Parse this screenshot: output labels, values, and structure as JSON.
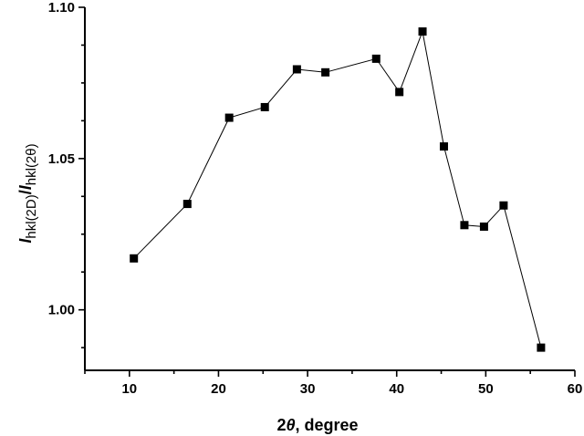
{
  "chart_data": {
    "type": "scatter",
    "title": "",
    "xlabel": {
      "num": "2",
      "sym": "θ",
      "rest": ", degree"
    },
    "ylabel": {
      "I1": "I",
      "sub1": "hkl(2D)",
      "slash": "/",
      "I2": "I",
      "sub2": "hkl(2θ)"
    },
    "xlim": [
      5,
      60
    ],
    "ylim": [
      0.98,
      1.1
    ],
    "x_ticks": [
      10,
      20,
      30,
      40,
      50,
      60
    ],
    "x_tick_labels": [
      "10",
      "20",
      "30",
      "40",
      "50",
      "60"
    ],
    "y_major_ticks": [
      1.0,
      1.05,
      1.1
    ],
    "y_tick_labels": [
      "1.00",
      "1.05",
      "1.10"
    ],
    "y_minor_ticks": [
      0.975,
      0.9875,
      1.0125,
      1.025,
      1.0375,
      1.0625,
      1.075,
      1.0875
    ],
    "grid": false,
    "series": [
      {
        "marker": "square",
        "color": "#000000",
        "x": [
          10.5,
          16.5,
          21.2,
          25.2,
          28.8,
          32.0,
          37.7,
          40.3,
          42.9,
          45.3,
          47.6,
          49.8,
          52.0,
          56.2
        ],
        "y": [
          1.017,
          1.035,
          1.0635,
          1.067,
          1.0795,
          1.0785,
          1.083,
          1.072,
          1.092,
          1.054,
          1.028,
          1.0275,
          1.0345,
          0.9875
        ]
      }
    ]
  }
}
